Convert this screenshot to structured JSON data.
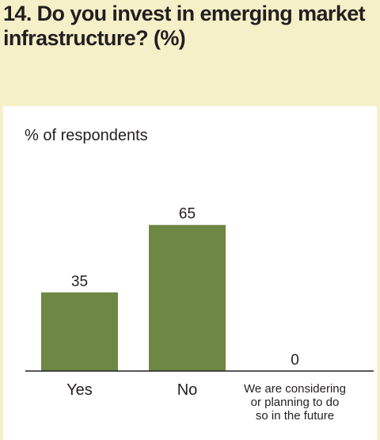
{
  "chart_data": {
    "type": "bar",
    "title": "14. Do you invest in emerging market infrastructure? (%)",
    "ylabel": "% of respondents",
    "xlabel": "",
    "categories": [
      [
        "Yes"
      ],
      [
        "No"
      ],
      [
        "We are considering",
        "or planning to do",
        "so in the future"
      ]
    ],
    "values": [
      35,
      65,
      0
    ],
    "ylim": [
      0,
      100
    ],
    "grid": false,
    "legend": "none",
    "colors": {
      "bar": "#6e8744",
      "axis": "#231f20",
      "panel": "#ffffff",
      "page_background": "#f6f0c9"
    }
  }
}
